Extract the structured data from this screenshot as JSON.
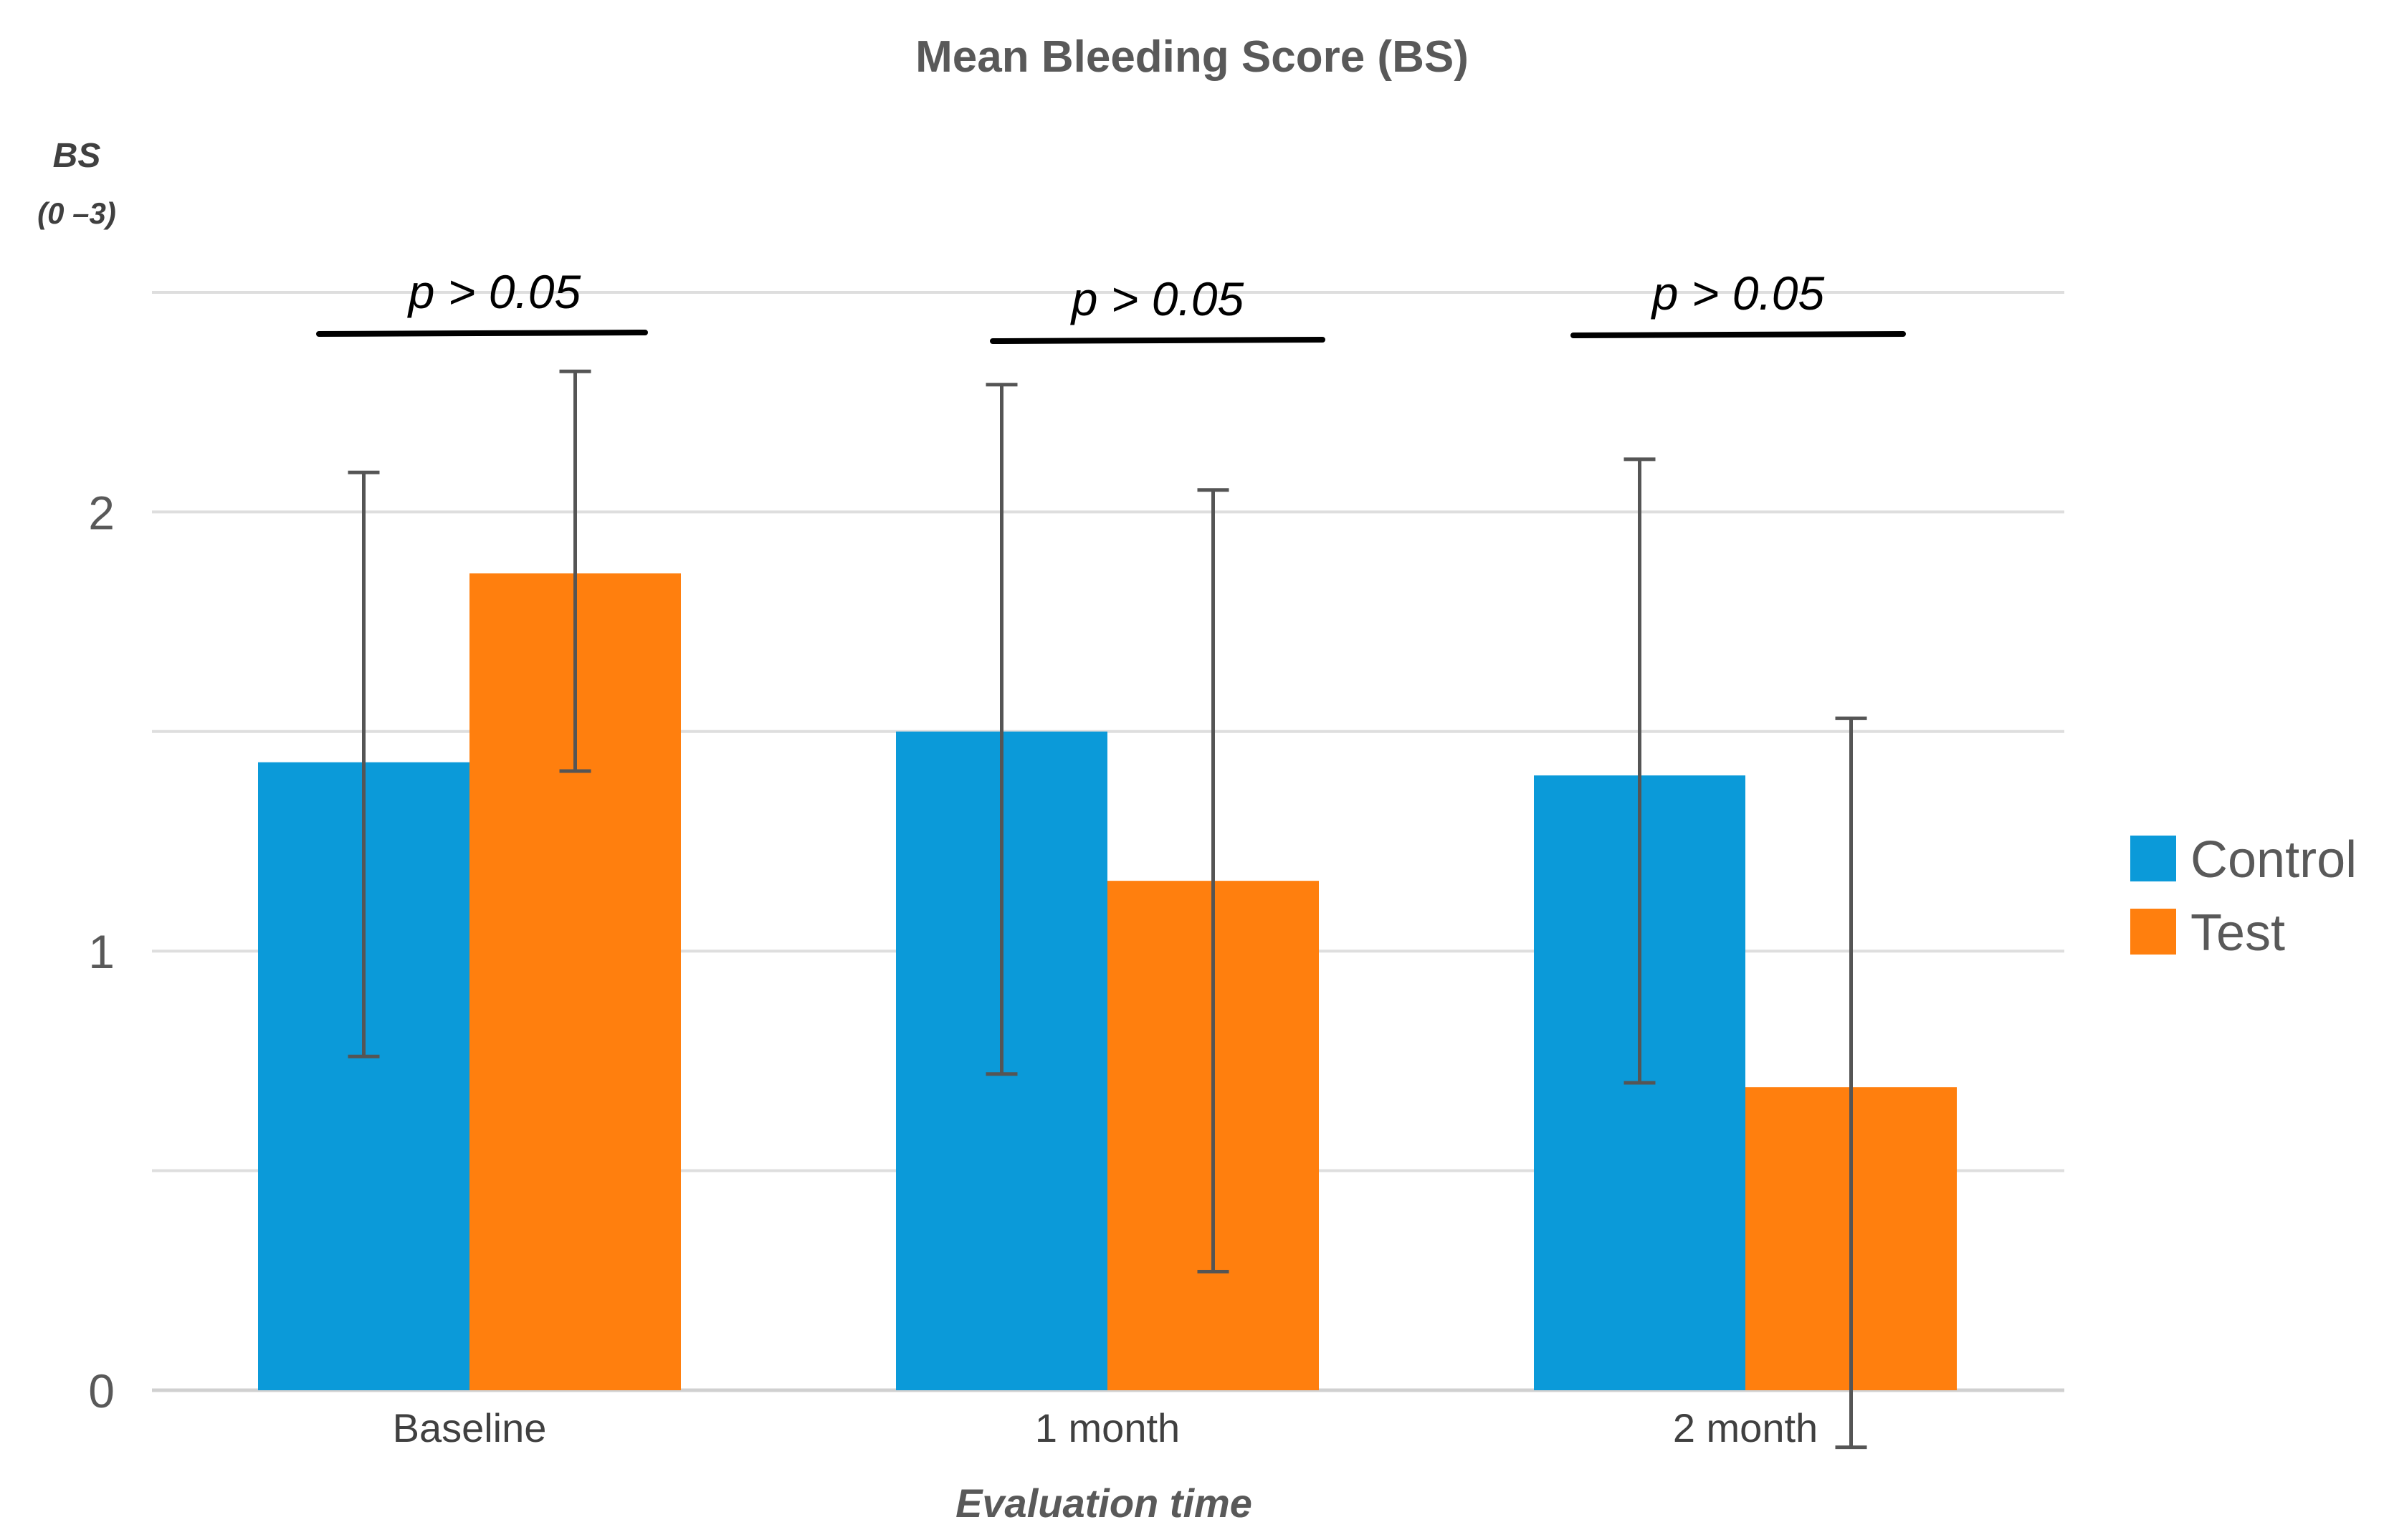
{
  "chart_data": {
    "type": "bar",
    "title": "Mean Bleeding Score (BS)",
    "ylabel": "BS",
    "ylabel_unit": "(0 –3)",
    "xlabel": "Evaluation time",
    "categories": [
      "Baseline",
      "1 month",
      "2 month"
    ],
    "ylim": [
      0,
      2.5
    ],
    "yticks": [
      0,
      1,
      2
    ],
    "gridlines": [
      0,
      0.5,
      1,
      1.5,
      2,
      2.5
    ],
    "grid": true,
    "legend_position": "right",
    "series": [
      {
        "name": "Control",
        "color": "#0B9AD9",
        "values": [
          1.43,
          1.5,
          1.4
        ],
        "error_low": [
          0.76,
          0.72,
          0.7
        ],
        "error_high": [
          2.09,
          2.29,
          2.12
        ]
      },
      {
        "name": "Test",
        "color": "#FF7F0E",
        "values": [
          1.86,
          1.16,
          0.69
        ],
        "error_low": [
          1.41,
          0.27,
          -0.13
        ],
        "error_high": [
          2.32,
          2.05,
          1.53
        ]
      }
    ],
    "annotations": [
      {
        "text": "p > 0.05",
        "category": "Baseline"
      },
      {
        "text": "p > 0.05",
        "category": "1 month"
      },
      {
        "text": "p > 0.05",
        "category": "2 month"
      }
    ]
  }
}
